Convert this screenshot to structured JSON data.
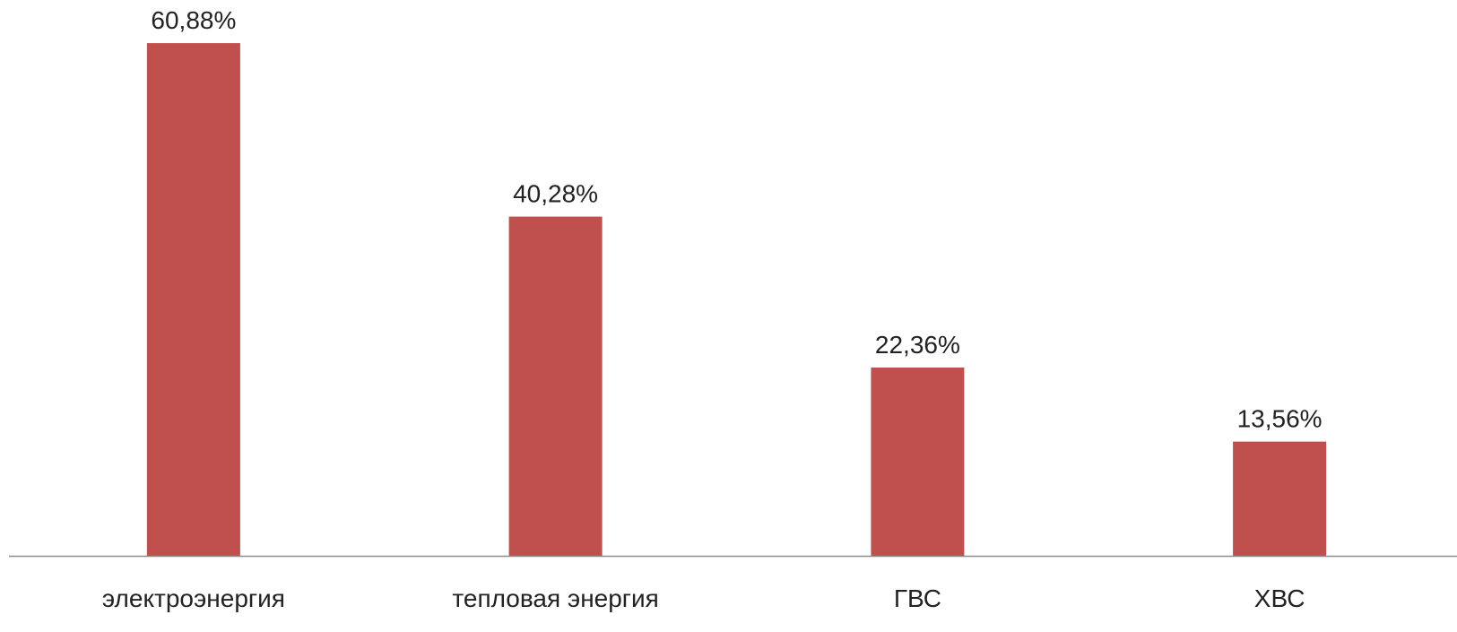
{
  "chart_data": {
    "type": "bar",
    "categories": [
      "электроэнергия",
      "тепловая энергия",
      "ГВС",
      "ХВС"
    ],
    "values": [
      60.88,
      40.28,
      22.36,
      13.56
    ],
    "value_labels": [
      "60,88%",
      "40,28%",
      "22,36%",
      "13,56%"
    ],
    "title": "",
    "xlabel": "",
    "ylabel": "",
    "ylim": [
      0,
      66
    ],
    "grid": false,
    "legend": "none",
    "colors": {
      "bar": "#C0504D",
      "axis": "#8C8C8C",
      "text": "#222222"
    }
  }
}
